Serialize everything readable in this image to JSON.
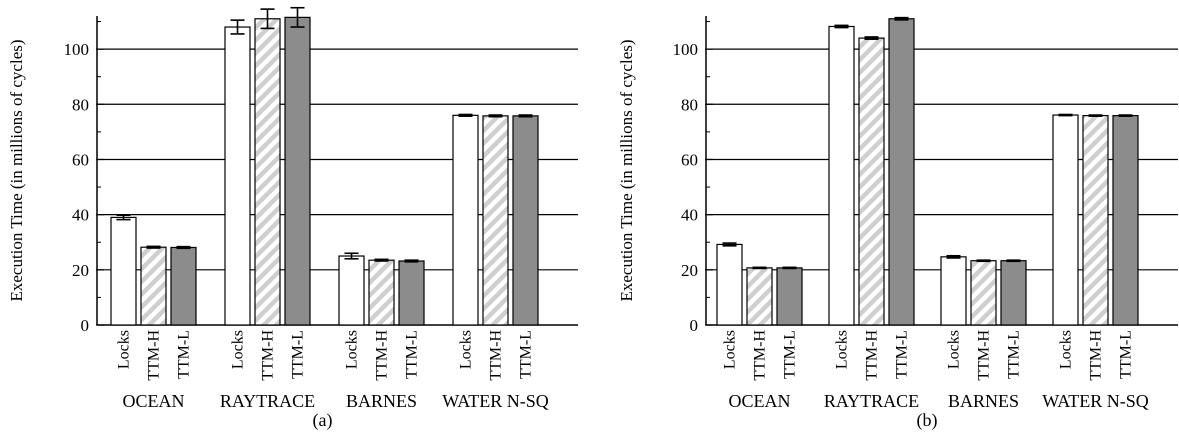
{
  "chart_data": [
    {
      "type": "bar",
      "panel_label": "(a)",
      "ylabel": "Execution Time (in millions of cycles)",
      "ylim": [
        0,
        112
      ],
      "yticks": [
        0,
        20,
        40,
        60,
        80,
        100
      ],
      "grid": "horizontal",
      "bar_labels": [
        "Locks",
        "TTM-H",
        "TTM-L"
      ],
      "groups": [
        "OCEAN",
        "RAYTRACE",
        "BARNES",
        "WATER N-SQ"
      ],
      "series": [
        {
          "name": "Locks",
          "values": [
            39,
            108,
            25,
            76
          ],
          "errors": [
            0.8,
            2.5,
            1.0,
            0.3
          ],
          "fill": "#ffffff"
        },
        {
          "name": "TTM-H",
          "values": [
            28.2,
            111,
            23.5,
            75.8
          ],
          "errors": [
            0.3,
            3.5,
            0.3,
            0.3
          ],
          "fill": "hatch"
        },
        {
          "name": "TTM-L",
          "values": [
            28.1,
            111.5,
            23.2,
            75.8
          ],
          "errors": [
            0.3,
            3.5,
            0.3,
            0.3
          ],
          "fill": "#8c8c8c"
        }
      ]
    },
    {
      "type": "bar",
      "panel_label": "(b)",
      "ylabel": "Execution Time (in millions of cycles)",
      "ylim": [
        0,
        112
      ],
      "yticks": [
        0,
        20,
        40,
        60,
        80,
        100
      ],
      "grid": "horizontal",
      "bar_labels": [
        "Locks",
        "TTM-H",
        "TTM-L"
      ],
      "groups": [
        "OCEAN",
        "RAYTRACE",
        "BARNES",
        "WATER N-SQ"
      ],
      "series": [
        {
          "name": "Locks",
          "values": [
            29.2,
            108.2,
            24.7,
            76.1
          ],
          "errors": [
            0.5,
            0.4,
            0.4,
            0.2
          ],
          "fill": "#ffffff"
        },
        {
          "name": "TTM-H",
          "values": [
            20.7,
            104,
            23.3,
            75.9
          ],
          "errors": [
            0.2,
            0.4,
            0.2,
            0.2
          ],
          "fill": "hatch"
        },
        {
          "name": "TTM-L",
          "values": [
            20.7,
            111,
            23.3,
            75.9
          ],
          "errors": [
            0.2,
            0.4,
            0.2,
            0.2
          ],
          "fill": "#8c8c8c"
        }
      ]
    }
  ]
}
